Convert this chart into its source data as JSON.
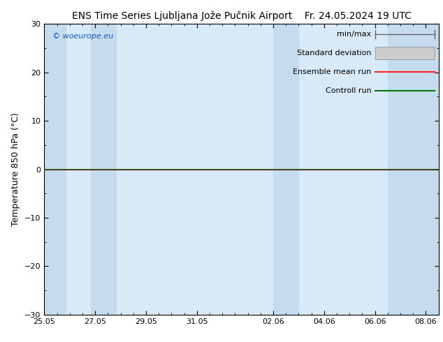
{
  "title": "ENS Time Series Ljubljana Jože Pučnik Airport",
  "date_str": "Fr. 24.05.2024 19 UTC",
  "ylabel": "Temperature 850 hPa (°C)",
  "watermark": "© woeurope.eu",
  "ylim": [
    -30,
    30
  ],
  "yticks": [
    -30,
    -20,
    -10,
    0,
    10,
    20,
    30
  ],
  "xtick_labels": [
    "25.05",
    "27.05",
    "29.05",
    "31.05",
    "02.06",
    "04.06",
    "06.06",
    "08.06"
  ],
  "xtick_positions": [
    0,
    2,
    4,
    6,
    9,
    11,
    13,
    15
  ],
  "xlim": [
    0,
    15.5
  ],
  "background_color": "#ffffff",
  "plot_bg_color": "#d8eaf8",
  "shaded_col_color": "#c5dcee",
  "bands": [
    [
      0,
      0.83
    ],
    [
      1.83,
      2.83
    ],
    [
      9.0,
      10.0
    ],
    [
      13.5,
      15.5
    ]
  ],
  "zero_line_color": "#000000",
  "green_line_color": "#007700",
  "red_line_color": "#ff2222",
  "title_fontsize": 10,
  "date_fontsize": 10,
  "ylabel_fontsize": 9,
  "tick_fontsize": 8,
  "watermark_fontsize": 8,
  "legend_fontsize": 8
}
